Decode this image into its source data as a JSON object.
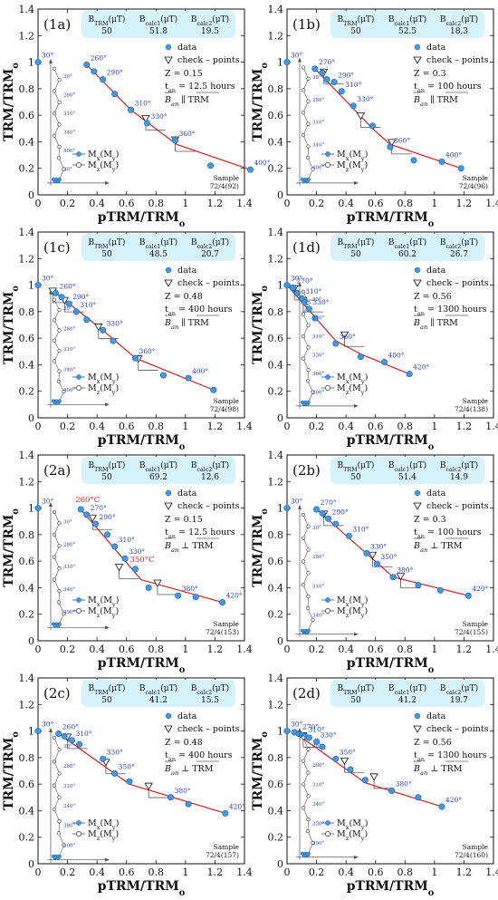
{
  "axis": {
    "xlabel": "pTRM/TRMo",
    "ylabel": "TRM/TRMo",
    "xlim": [
      0,
      1.4
    ],
    "ylim": [
      0,
      1.4
    ],
    "xticks": [
      "0",
      "0.2",
      "0.4",
      "0.6",
      "0.8",
      "1",
      "1.2",
      "1.4"
    ],
    "yticks": [
      "0",
      "0.2",
      "0.4",
      "0.6",
      "0.8",
      "1",
      "1.2",
      "1.4"
    ]
  },
  "colors": {
    "data": "#3d9ae8",
    "fit": "#e21b1b",
    "box": "#d6f3fb",
    "label": "#1f3fd0"
  },
  "box_headers": [
    "B_TRM(μT)",
    "B_calc1(μT)",
    "B_calc2(μT)"
  ],
  "legend": {
    "data": "data",
    "check": "check – points",
    "mx": "Mx(My)",
    "mz": "Mz(My)"
  },
  "chart_data": [
    {
      "id": "(1a)",
      "type": "scatter",
      "b_trm": "50",
      "b_calc1": "51.8",
      "b_calc2": "19.5",
      "z": "Z = 0.15",
      "t_an": "t_an = 12.5 hours",
      "orientation": "parallel",
      "sample": "Sample",
      "sample_id": "72/4(92)",
      "points": [
        [
          0,
          1
        ],
        [
          0.33,
          0.98
        ],
        [
          0.38,
          0.93
        ],
        [
          0.44,
          0.87
        ],
        [
          0.52,
          0.76
        ],
        [
          0.63,
          0.64
        ],
        [
          0.74,
          0.54
        ],
        [
          0.93,
          0.41
        ],
        [
          1.17,
          0.22
        ],
        [
          1.44,
          0.19
        ]
      ],
      "point_labels": [
        [
          "30°",
          0
        ],
        [
          "260°",
          1
        ],
        [
          "290°",
          3
        ],
        [
          "310°",
          5
        ],
        [
          "330°",
          6
        ],
        [
          "360°",
          7
        ],
        [
          "400°",
          9
        ]
      ],
      "fit": [
        [
          0.33,
          0.98
        ],
        [
          0.63,
          0.64
        ],
        [
          0.94,
          0.38
        ],
        [
          1.44,
          0.19
        ]
      ],
      "checks": [
        [
          0.73,
          0.57
        ],
        [
          0.93,
          0.41
        ]
      ],
      "zij": {
        "top": 0.95,
        "bottom": 0.11,
        "labels": [
          "30°",
          "280°",
          "310°",
          "340°",
          "400°",
          "30°"
        ]
      }
    },
    {
      "id": "(1b)",
      "type": "scatter",
      "b_trm": "50",
      "b_calc1": "52.5",
      "b_calc2": "18.3",
      "z": "Z = 0.3",
      "t_an": "t_an = 100 hours",
      "orientation": "parallel",
      "sample": "Sample",
      "sample_id": "72/4(96)",
      "points": [
        [
          0,
          1
        ],
        [
          0.19,
          0.95
        ],
        [
          0.24,
          0.92
        ],
        [
          0.27,
          0.87
        ],
        [
          0.32,
          0.85
        ],
        [
          0.37,
          0.78
        ],
        [
          0.45,
          0.67
        ],
        [
          0.58,
          0.52
        ],
        [
          0.7,
          0.36
        ],
        [
          0.86,
          0.26
        ],
        [
          1.05,
          0.25
        ],
        [
          1.18,
          0.2
        ]
      ],
      "point_labels": [
        [
          "30°",
          0
        ],
        [
          "270°",
          1
        ],
        [
          "290°",
          4
        ],
        [
          "310°",
          5
        ],
        [
          "330°",
          6
        ],
        [
          "360°",
          8
        ],
        [
          "400°",
          10
        ]
      ],
      "fit": [
        [
          0.19,
          0.95
        ],
        [
          0.58,
          0.5
        ],
        [
          0.7,
          0.38
        ],
        [
          1.18,
          0.2
        ]
      ],
      "checks": [
        [
          0.25,
          0.92
        ],
        [
          0.5,
          0.59
        ],
        [
          0.71,
          0.39
        ]
      ],
      "zij": {
        "top": 0.96,
        "bottom": 0.11,
        "labels": [
          "30°",
          "280°",
          "310°",
          "340°",
          "400°"
        ]
      }
    },
    {
      "id": "(1c)",
      "type": "scatter",
      "b_trm": "50",
      "b_calc1": "48.5",
      "b_calc2": "20.7",
      "z": "Z = 0.48",
      "t_an": "t_an = 400 hours",
      "orientation": "parallel",
      "sample": "Sample",
      "sample_id": "72/4(98)",
      "points": [
        [
          0,
          1
        ],
        [
          0.12,
          0.94
        ],
        [
          0.16,
          0.91
        ],
        [
          0.21,
          0.86
        ],
        [
          0.26,
          0.8
        ],
        [
          0.33,
          0.74
        ],
        [
          0.44,
          0.66
        ],
        [
          0.51,
          0.58
        ],
        [
          0.66,
          0.45
        ],
        [
          0.85,
          0.32
        ],
        [
          1.02,
          0.3
        ],
        [
          1.19,
          0.21
        ]
      ],
      "point_labels": [
        [
          "30°",
          0
        ],
        [
          "260°",
          1
        ],
        [
          "290°",
          3
        ],
        [
          "310°",
          4
        ],
        [
          "330°",
          6
        ],
        [
          "360°",
          8
        ],
        [
          "400°",
          10
        ]
      ],
      "fit": [
        [
          0.12,
          0.94
        ],
        [
          0.44,
          0.66
        ],
        [
          0.66,
          0.45
        ],
        [
          1.19,
          0.21
        ]
      ],
      "checks": [
        [
          0.1,
          0.95
        ],
        [
          0.18,
          0.88
        ],
        [
          0.41,
          0.68
        ],
        [
          0.68,
          0.44
        ]
      ],
      "zij": {
        "top": 0.89,
        "bottom": 0.12,
        "labels": [
          "30°",
          "280°",
          "310°",
          "340°",
          "400°"
        ]
      }
    },
    {
      "id": "(1d)",
      "type": "scatter",
      "b_trm": "50",
      "b_calc1": "60.2",
      "b_calc2": "26.7",
      "z": "Z = 0.56",
      "t_an": "t_an = 1300 hours",
      "orientation": "parallel",
      "sample": "Sample",
      "sample_id": "72/4(138)",
      "points": [
        [
          0,
          1
        ],
        [
          0.04,
          0.98
        ],
        [
          0.07,
          0.94
        ],
        [
          0.1,
          0.9
        ],
        [
          0.12,
          0.87
        ],
        [
          0.15,
          0.82
        ],
        [
          0.19,
          0.75
        ],
        [
          0.33,
          0.56
        ],
        [
          0.5,
          0.46
        ],
        [
          0.66,
          0.42
        ],
        [
          0.83,
          0.33
        ]
      ],
      "point_labels": [
        [
          "30°",
          0
        ],
        [
          "270°",
          1
        ],
        [
          "310°",
          3
        ],
        [
          "330°",
          5
        ],
        [
          "360°",
          7
        ],
        [
          "400°",
          9
        ],
        [
          "420°",
          10
        ]
      ],
      "fit": [
        [
          0.0,
          1.0
        ],
        [
          0.33,
          0.58
        ],
        [
          0.5,
          0.48
        ],
        [
          0.83,
          0.33
        ]
      ],
      "checks": [
        [
          0.05,
          0.97
        ],
        [
          0.11,
          0.88
        ],
        [
          0.39,
          0.62
        ]
      ],
      "zij": {
        "top": 0.95,
        "bottom": 0.11,
        "labels": [
          "30°",
          "270°",
          "310°",
          "330°",
          "360°",
          "400°"
        ]
      }
    },
    {
      "id": "(2a)",
      "type": "scatter",
      "b_trm": "50",
      "b_calc1": "69.2",
      "b_calc2": "12.6",
      "z": "Z = 0.15",
      "t_an": "t_an = 12.5 hours",
      "orientation": "perpendicular",
      "sample": "Sample",
      "sample_id": "72/4(153)",
      "points": [
        [
          0,
          1
        ],
        [
          0.29,
          0.99
        ],
        [
          0.33,
          0.95
        ],
        [
          0.39,
          0.88
        ],
        [
          0.47,
          0.8
        ],
        [
          0.52,
          0.71
        ],
        [
          0.59,
          0.62
        ],
        [
          0.66,
          0.54
        ],
        [
          0.75,
          0.4
        ],
        [
          0.95,
          0.34
        ],
        [
          1.07,
          0.33
        ],
        [
          1.25,
          0.29
        ]
      ],
      "point_labels": [
        [
          "30°",
          0
        ],
        [
          "270°",
          2
        ],
        [
          "290°",
          3
        ],
        [
          "310°",
          5
        ],
        [
          "330°",
          6
        ],
        [
          "380°",
          9
        ],
        [
          "420°",
          11
        ]
      ],
      "red_labels": [
        [
          "260°C",
          1
        ],
        [
          "350°C",
          7
        ]
      ],
      "fit": [
        [
          0.29,
          0.99
        ],
        [
          0.7,
          0.46
        ],
        [
          1.25,
          0.29
        ]
      ],
      "checks": [
        [
          0.37,
          0.92
        ],
        [
          0.55,
          0.55
        ],
        [
          0.81,
          0.43
        ]
      ],
      "zij": {
        "top": 0.97,
        "bottom": 0.12,
        "labels": [
          "30°",
          "280°",
          "310°",
          "340°",
          "390°"
        ]
      }
    },
    {
      "id": "(2b)",
      "type": "scatter",
      "b_trm": "50",
      "b_calc1": "51.4",
      "b_calc2": "14.9",
      "z": "Z = 0.3",
      "t_an": "t_an = 100 hours",
      "orientation": "perpendicular",
      "sample": "Sample",
      "sample_id": "72/4(155)",
      "points": [
        [
          0,
          1
        ],
        [
          0.2,
          0.99
        ],
        [
          0.24,
          0.96
        ],
        [
          0.28,
          0.92
        ],
        [
          0.33,
          0.88
        ],
        [
          0.42,
          0.79
        ],
        [
          0.54,
          0.66
        ],
        [
          0.61,
          0.58
        ],
        [
          0.72,
          0.48
        ],
        [
          0.89,
          0.42
        ],
        [
          1.04,
          0.38
        ],
        [
          1.23,
          0.34
        ]
      ],
      "point_labels": [
        [
          "30°",
          0
        ],
        [
          "270°",
          1
        ],
        [
          "290°",
          3
        ],
        [
          "310°",
          5
        ],
        [
          "330°",
          6
        ],
        [
          "350°",
          7
        ],
        [
          "380°",
          8
        ],
        [
          "420°",
          11
        ]
      ],
      "fit": [
        [
          0.2,
          0.99
        ],
        [
          0.72,
          0.48
        ],
        [
          1.23,
          0.34
        ]
      ],
      "checks": [
        [
          0.25,
          0.95
        ],
        [
          0.58,
          0.64
        ],
        [
          0.77,
          0.48
        ]
      ],
      "zij": {
        "top": 0.95,
        "bottom": 0.07,
        "labels": [
          "30°",
          "280°",
          "310°",
          "340°"
        ]
      }
    },
    {
      "id": "(2c)",
      "type": "scatter",
      "b_trm": "50",
      "b_calc1": "41.2",
      "b_calc2": "15.5",
      "z": "Z = 0.48",
      "t_an": "t_an = 400 hours",
      "orientation": "perpendicular",
      "sample": "Sample",
      "sample_id": "72/4(157)",
      "points": [
        [
          0,
          1
        ],
        [
          0.14,
          0.98
        ],
        [
          0.18,
          0.96
        ],
        [
          0.23,
          0.93
        ],
        [
          0.28,
          0.9
        ],
        [
          0.44,
          0.79
        ],
        [
          0.52,
          0.68
        ],
        [
          0.62,
          0.62
        ],
        [
          0.9,
          0.5
        ],
        [
          1.02,
          0.45
        ],
        [
          1.27,
          0.38
        ]
      ],
      "point_labels": [
        [
          "30°",
          0
        ],
        [
          "260°",
          1
        ],
        [
          "310°",
          3
        ],
        [
          "330°",
          5
        ],
        [
          "350°",
          6
        ],
        [
          "380°",
          8
        ],
        [
          "420°",
          10
        ]
      ],
      "fit": [
        [
          0.14,
          0.98
        ],
        [
          0.62,
          0.6
        ],
        [
          1.27,
          0.38
        ]
      ],
      "checks": [
        [
          0.2,
          0.95
        ],
        [
          0.46,
          0.76
        ],
        [
          0.75,
          0.58
        ]
      ],
      "zij": {
        "top": 0.95,
        "bottom": 0.05,
        "labels": [
          "30°",
          "280°",
          "310°",
          "340°",
          "380°",
          "400°"
        ]
      }
    },
    {
      "id": "(2d)",
      "type": "scatter",
      "b_trm": "50",
      "b_calc1": "41.2",
      "b_calc2": "19.7",
      "z": "Z = 0.56",
      "t_an": "t_an = 1300 hours",
      "orientation": "perpendicular",
      "sample": "Sample",
      "sample_id": "72/4(160)",
      "points": [
        [
          0,
          1
        ],
        [
          0.05,
          0.99
        ],
        [
          0.08,
          0.98
        ],
        [
          0.1,
          0.97
        ],
        [
          0.12,
          0.96
        ],
        [
          0.15,
          0.95
        ],
        [
          0.2,
          0.92
        ],
        [
          0.24,
          0.88
        ],
        [
          0.33,
          0.79
        ],
        [
          0.43,
          0.71
        ],
        [
          0.53,
          0.63
        ],
        [
          0.71,
          0.55
        ],
        [
          0.89,
          0.5
        ],
        [
          1.05,
          0.43
        ]
      ],
      "point_labels": [
        [
          "30°",
          0
        ],
        [
          "270°",
          2
        ],
        [
          "310°",
          4
        ],
        [
          "330°",
          6
        ],
        [
          "350°",
          8
        ],
        [
          "380°",
          11
        ],
        [
          "420°",
          13
        ]
      ],
      "fit": [
        [
          0.05,
          0.99
        ],
        [
          0.53,
          0.61
        ],
        [
          1.05,
          0.43
        ]
      ],
      "checks": [
        [
          0.11,
          0.96
        ],
        [
          0.39,
          0.77
        ],
        [
          0.59,
          0.65
        ]
      ],
      "zij": {
        "top": 0.95,
        "bottom": 0.07,
        "labels": [
          "30°",
          "260°",
          "310°",
          "340°",
          "350°",
          "390°"
        ]
      }
    }
  ]
}
